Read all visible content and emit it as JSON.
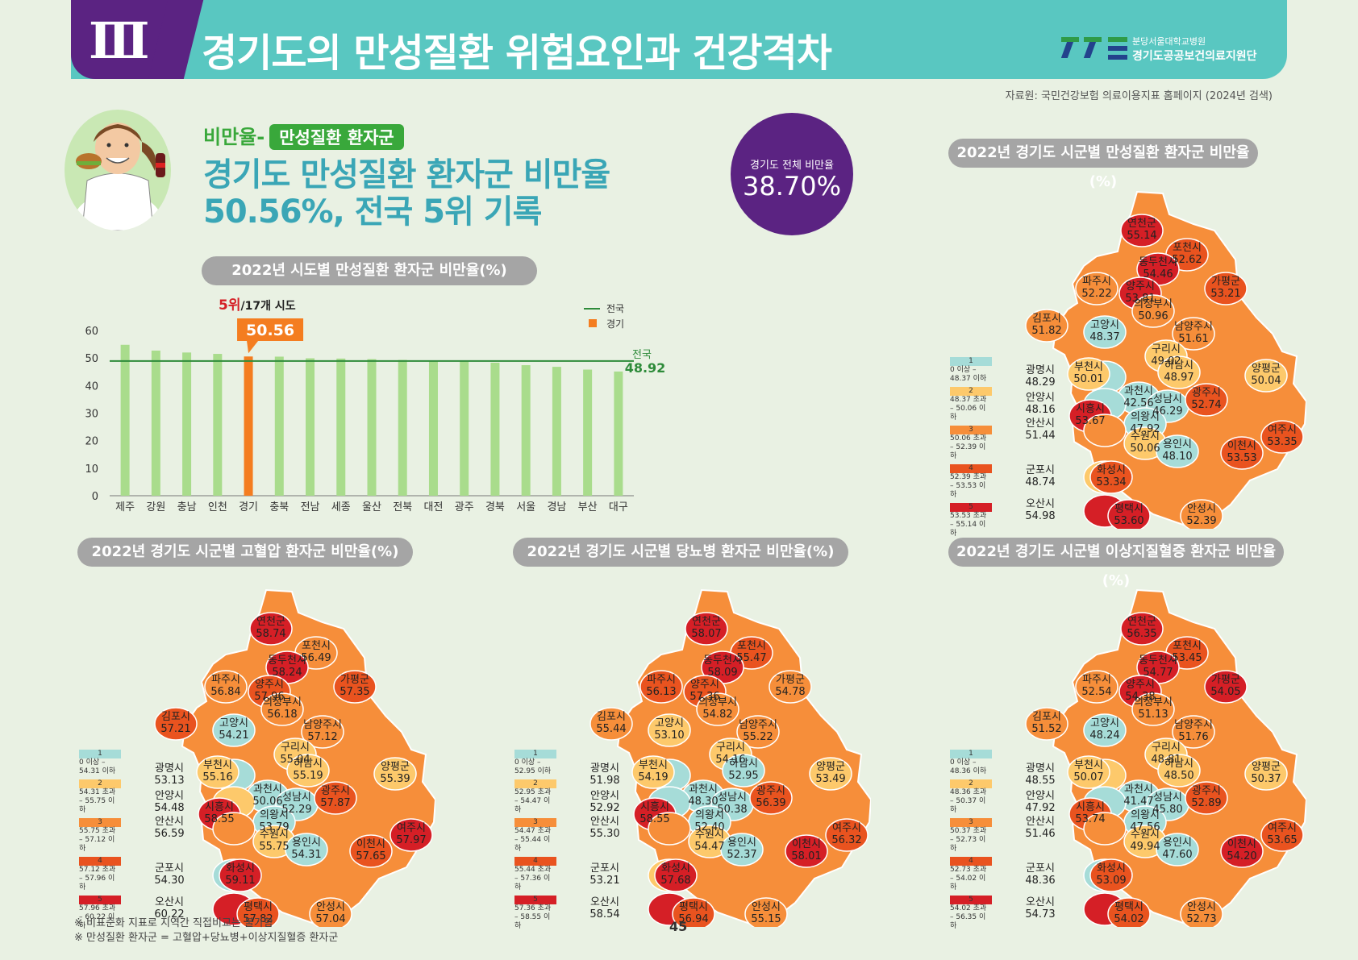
{
  "header": {
    "section_num": "Ⅲ",
    "title": "경기도의 만성질환 위험요인과 건강격차",
    "logo_sub": "분당서울대학교병원",
    "logo_main": "경기도공공보건의료지원단"
  },
  "source": "자료원: 국민건강보험 의료이용지표 홈페이지 (2024년 검색)",
  "intro": {
    "tag_prefix": "비만율-",
    "tag_box": "만성질환 환자군",
    "headline_1": "경기도  만성질환 환자군 비만율",
    "headline_2": "50.56%, 전국 5위 기록",
    "circle_label": "경기도 전체 비만율",
    "circle_value": "38.70%"
  },
  "bar_pill": "2022년 시도별 만성질환 환자군 비만율(%)",
  "rank_text": "5위",
  "rank_suffix": "/17개 시도",
  "callout": "50.56",
  "legend_national": "전국",
  "legend_gyeonggi": "경기",
  "national_label": "전국",
  "national_value": "48.92",
  "chart_data": {
    "type": "bar",
    "title": "2022년 시도별 만성질환 환자군 비만율(%)",
    "categories": [
      "제주",
      "강원",
      "충남",
      "인천",
      "경기",
      "충북",
      "전남",
      "세종",
      "울산",
      "전북",
      "대전",
      "광주",
      "경북",
      "서울",
      "경남",
      "부산",
      "대구"
    ],
    "values": [
      54.8,
      52.7,
      52.0,
      51.5,
      50.56,
      50.5,
      49.9,
      49.8,
      49.6,
      49.3,
      49.0,
      48.9,
      48.3,
      47.4,
      46.8,
      45.8,
      45.1
    ],
    "highlight": "경기",
    "national_average": 48.92,
    "ylim": [
      0,
      60
    ],
    "yticks": [
      0,
      10,
      20,
      30,
      40,
      50,
      60
    ],
    "colors": {
      "bar": "#a9dc8c",
      "highlight": "#f47d20",
      "national": "#2e8b3a"
    }
  },
  "maps": [
    {
      "pill": "2022년 경기도 시군별 만성질환 환자군 비만율(%)",
      "legend": [
        {
          "n": "1",
          "t": "0 이상 – 48.37 이하"
        },
        {
          "n": "2",
          "t": "48.37 초과 – 50.06 이하"
        },
        {
          "n": "3",
          "t": "50.06 초과 – 52.39 이하"
        },
        {
          "n": "4",
          "t": "52.39 초과 – 53.53 이하"
        },
        {
          "n": "5",
          "t": "53.53 초과 – 55.14 이하"
        }
      ],
      "regions": [
        {
          "n": "연천군",
          "v": "55.14",
          "c": 5
        },
        {
          "n": "포천시",
          "v": "52.62",
          "c": 4
        },
        {
          "n": "동두천시",
          "v": "54.46",
          "c": 5
        },
        {
          "n": "파주시",
          "v": "52.22",
          "c": 3
        },
        {
          "n": "양주시",
          "v": "53.81",
          "c": 5
        },
        {
          "n": "가평군",
          "v": "53.21",
          "c": 4
        },
        {
          "n": "의정부시",
          "v": "50.96",
          "c": 3
        },
        {
          "n": "김포시",
          "v": "51.82",
          "c": 3
        },
        {
          "n": "고양시",
          "v": "48.37",
          "c": 1
        },
        {
          "n": "남양주시",
          "v": "51.61",
          "c": 3
        },
        {
          "n": "구리시",
          "v": "49.02",
          "c": 2
        },
        {
          "n": "하남시",
          "v": "48.97",
          "c": 2
        },
        {
          "n": "양평군",
          "v": "50.04",
          "c": 2
        },
        {
          "n": "광명시",
          "v": "48.29",
          "c": 1
        },
        {
          "n": "부천시",
          "v": "50.01",
          "c": 2
        },
        {
          "n": "과천시",
          "v": "42.56",
          "c": 1
        },
        {
          "n": "성남시",
          "v": "46.29",
          "c": 1
        },
        {
          "n": "광주시",
          "v": "52.74",
          "c": 4
        },
        {
          "n": "안양시",
          "v": "48.16",
          "c": 1
        },
        {
          "n": "시흥시",
          "v": "53.67",
          "c": 5
        },
        {
          "n": "의왕시",
          "v": "47.92",
          "c": 1
        },
        {
          "n": "안산시",
          "v": "51.44",
          "c": 3
        },
        {
          "n": "수원시",
          "v": "50.06",
          "c": 2
        },
        {
          "n": "여주시",
          "v": "53.35",
          "c": 4
        },
        {
          "n": "용인시",
          "v": "48.10",
          "c": 1
        },
        {
          "n": "이천시",
          "v": "53.53",
          "c": 4
        },
        {
          "n": "군포시",
          "v": "48.74",
          "c": 2
        },
        {
          "n": "화성시",
          "v": "53.34",
          "c": 4
        },
        {
          "n": "오산시",
          "v": "54.98",
          "c": 5
        },
        {
          "n": "평택시",
          "v": "53.60",
          "c": 5
        },
        {
          "n": "안성시",
          "v": "52.39",
          "c": 3
        }
      ]
    },
    {
      "pill": "2022년 경기도 시군별 고혈압 환자군 비만율(%)",
      "legend": [
        {
          "n": "1",
          "t": "0 이상 – 54.31 이하"
        },
        {
          "n": "2",
          "t": "54.31 초과 – 55.75 이하"
        },
        {
          "n": "3",
          "t": "55.75 초과 – 57.12 이하"
        },
        {
          "n": "4",
          "t": "57.12 초과 – 57.96 이하"
        },
        {
          "n": "5",
          "t": "57.96 초과 – 60.22 이하"
        }
      ],
      "regions": [
        {
          "n": "연천군",
          "v": "58.74",
          "c": 5
        },
        {
          "n": "포천시",
          "v": "56.49",
          "c": 3
        },
        {
          "n": "동두천시",
          "v": "58.24",
          "c": 5
        },
        {
          "n": "파주시",
          "v": "56.84",
          "c": 3
        },
        {
          "n": "양주시",
          "v": "57.96",
          "c": 4
        },
        {
          "n": "가평군",
          "v": "57.35",
          "c": 4
        },
        {
          "n": "의정부시",
          "v": "56.18",
          "c": 3
        },
        {
          "n": "김포시",
          "v": "57.21",
          "c": 4
        },
        {
          "n": "고양시",
          "v": "54.21",
          "c": 1
        },
        {
          "n": "남양주시",
          "v": "57.12",
          "c": 3
        },
        {
          "n": "구리시",
          "v": "55.04",
          "c": 2
        },
        {
          "n": "하남시",
          "v": "55.19",
          "c": 2
        },
        {
          "n": "양평군",
          "v": "55.39",
          "c": 2
        },
        {
          "n": "광명시",
          "v": "53.13",
          "c": 1
        },
        {
          "n": "부천시",
          "v": "55.16",
          "c": 2
        },
        {
          "n": "과천시",
          "v": "50.06",
          "c": 1
        },
        {
          "n": "성남시",
          "v": "52.29",
          "c": 1
        },
        {
          "n": "광주시",
          "v": "57.87",
          "c": 4
        },
        {
          "n": "안양시",
          "v": "54.48",
          "c": 2
        },
        {
          "n": "시흥시",
          "v": "58.55",
          "c": 5
        },
        {
          "n": "의왕시",
          "v": "53.79",
          "c": 1
        },
        {
          "n": "안산시",
          "v": "56.59",
          "c": 3
        },
        {
          "n": "수원시",
          "v": "55.75",
          "c": 2
        },
        {
          "n": "여주시",
          "v": "57.97",
          "c": 5
        },
        {
          "n": "용인시",
          "v": "54.31",
          "c": 1
        },
        {
          "n": "이천시",
          "v": "57.65",
          "c": 4
        },
        {
          "n": "군포시",
          "v": "54.30",
          "c": 1
        },
        {
          "n": "화성시",
          "v": "59.11",
          "c": 5
        },
        {
          "n": "오산시",
          "v": "60.22",
          "c": 5
        },
        {
          "n": "평택시",
          "v": "57.82",
          "c": 4
        },
        {
          "n": "안성시",
          "v": "57.04",
          "c": 3
        }
      ]
    },
    {
      "pill": "2022년 경기도 시군별 당뇨병 환자군 비만율(%)",
      "legend": [
        {
          "n": "1",
          "t": "0 이상 – 52.95 이하"
        },
        {
          "n": "2",
          "t": "52.95 초과 – 54.47 이하"
        },
        {
          "n": "3",
          "t": "54.47 초과 – 55.44 이하"
        },
        {
          "n": "4",
          "t": "55.44 초과 – 57.36 이하"
        },
        {
          "n": "5",
          "t": "57.36 초과 – 58.55 이하"
        }
      ],
      "regions": [
        {
          "n": "연천군",
          "v": "58.07",
          "c": 5
        },
        {
          "n": "포천시",
          "v": "55.47",
          "c": 4
        },
        {
          "n": "동두천시",
          "v": "58.09",
          "c": 5
        },
        {
          "n": "파주시",
          "v": "56.13",
          "c": 4
        },
        {
          "n": "양주시",
          "v": "57.36",
          "c": 4
        },
        {
          "n": "가평군",
          "v": "54.78",
          "c": 3
        },
        {
          "n": "의정부시",
          "v": "54.82",
          "c": 3
        },
        {
          "n": "김포시",
          "v": "55.44",
          "c": 3
        },
        {
          "n": "고양시",
          "v": "53.10",
          "c": 2
        },
        {
          "n": "남양주시",
          "v": "55.22",
          "c": 3
        },
        {
          "n": "구리시",
          "v": "54.16",
          "c": 2
        },
        {
          "n": "하남시",
          "v": "52.95",
          "c": 1
        },
        {
          "n": "양평군",
          "v": "53.49",
          "c": 2
        },
        {
          "n": "광명시",
          "v": "51.98",
          "c": 1
        },
        {
          "n": "부천시",
          "v": "54.19",
          "c": 2
        },
        {
          "n": "과천시",
          "v": "48.30",
          "c": 1
        },
        {
          "n": "성남시",
          "v": "50.38",
          "c": 1
        },
        {
          "n": "광주시",
          "v": "56.39",
          "c": 4
        },
        {
          "n": "안양시",
          "v": "52.92",
          "c": 1
        },
        {
          "n": "시흥시",
          "v": "58.55",
          "c": 5
        },
        {
          "n": "의왕시",
          "v": "52.40",
          "c": 1
        },
        {
          "n": "안산시",
          "v": "55.30",
          "c": 3
        },
        {
          "n": "수원시",
          "v": "54.47",
          "c": 2
        },
        {
          "n": "여주시",
          "v": "56.32",
          "c": 4
        },
        {
          "n": "용인시",
          "v": "52.37",
          "c": 1
        },
        {
          "n": "이천시",
          "v": "58.01",
          "c": 5
        },
        {
          "n": "군포시",
          "v": "53.21",
          "c": 2
        },
        {
          "n": "화성시",
          "v": "57.68",
          "c": 5
        },
        {
          "n": "오산시",
          "v": "58.54",
          "c": 5
        },
        {
          "n": "평택시",
          "v": "56.94",
          "c": 4
        },
        {
          "n": "안성시",
          "v": "55.15",
          "c": 3
        }
      ]
    },
    {
      "pill": "2022년 경기도 시군별 이상지질혈증 환자군 비만율(%)",
      "legend": [
        {
          "n": "1",
          "t": "0 이상 – 48.36 이하"
        },
        {
          "n": "2",
          "t": "48.36 초과 – 50.37 이하"
        },
        {
          "n": "3",
          "t": "50.37 초과 – 52.73 이하"
        },
        {
          "n": "4",
          "t": "52.73 초과 – 54.02 이하"
        },
        {
          "n": "5",
          "t": "54.02 초과 – 56.35 이하"
        }
      ],
      "regions": [
        {
          "n": "연천군",
          "v": "56.35",
          "c": 5
        },
        {
          "n": "포천시",
          "v": "53.45",
          "c": 4
        },
        {
          "n": "동두천시",
          "v": "54.77",
          "c": 5
        },
        {
          "n": "파주시",
          "v": "52.54",
          "c": 3
        },
        {
          "n": "양주시",
          "v": "54.38",
          "c": 5
        },
        {
          "n": "가평군",
          "v": "54.05",
          "c": 5
        },
        {
          "n": "의정부시",
          "v": "51.13",
          "c": 3
        },
        {
          "n": "김포시",
          "v": "51.52",
          "c": 3
        },
        {
          "n": "고양시",
          "v": "48.24",
          "c": 1
        },
        {
          "n": "남양주시",
          "v": "51.76",
          "c": 3
        },
        {
          "n": "구리시",
          "v": "48.81",
          "c": 2
        },
        {
          "n": "하남시",
          "v": "48.50",
          "c": 2
        },
        {
          "n": "양평군",
          "v": "50.37",
          "c": 2
        },
        {
          "n": "광명시",
          "v": "48.55",
          "c": 2
        },
        {
          "n": "부천시",
          "v": "50.07",
          "c": 2
        },
        {
          "n": "과천시",
          "v": "41.47",
          "c": 1
        },
        {
          "n": "성남시",
          "v": "45.80",
          "c": 1
        },
        {
          "n": "광주시",
          "v": "52.89",
          "c": 4
        },
        {
          "n": "안양시",
          "v": "47.92",
          "c": 1
        },
        {
          "n": "시흥시",
          "v": "53.74",
          "c": 4
        },
        {
          "n": "의왕시",
          "v": "47.56",
          "c": 1
        },
        {
          "n": "안산시",
          "v": "51.46",
          "c": 3
        },
        {
          "n": "수원시",
          "v": "49.94",
          "c": 2
        },
        {
          "n": "여주시",
          "v": "53.65",
          "c": 4
        },
        {
          "n": "용인시",
          "v": "47.60",
          "c": 1
        },
        {
          "n": "이천시",
          "v": "54.20",
          "c": 5
        },
        {
          "n": "군포시",
          "v": "48.36",
          "c": 1
        },
        {
          "n": "화성시",
          "v": "53.09",
          "c": 4
        },
        {
          "n": "오산시",
          "v": "54.73",
          "c": 5
        },
        {
          "n": "평택시",
          "v": "54.02",
          "c": 4
        },
        {
          "n": "안성시",
          "v": "52.73",
          "c": 3
        }
      ]
    }
  ],
  "scale_colors": [
    "#a6dcd8",
    "#fdc96b",
    "#f68e3a",
    "#e9531f",
    "#d51f26"
  ],
  "notes": [
    "※ 비표준화 지표로 지역간 직접비교는 불가함",
    "※ 만성질환 환자군 = 고혈압+당뇨병+이상지질혈증 환자군"
  ],
  "page_number": "45"
}
